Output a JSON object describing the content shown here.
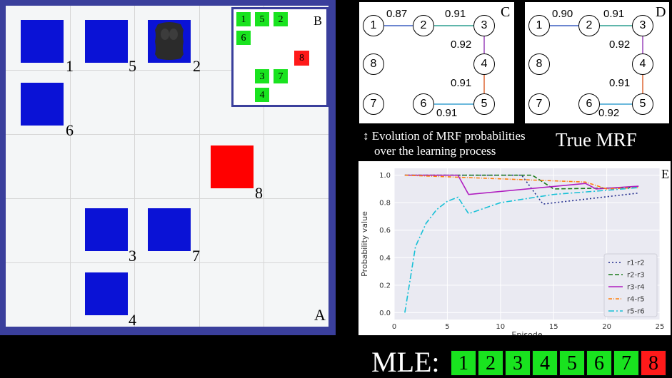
{
  "panelA": {
    "letter": "A",
    "labels": [
      "1",
      "5",
      "2",
      "6",
      "8",
      "3",
      "7",
      "4"
    ],
    "agent_icon": "robot-agent-icon",
    "colors": {
      "border": "#3a3f9c",
      "target": "#0a12d6",
      "wrong": "#ff0000"
    }
  },
  "panelB": {
    "letter": "B",
    "cells": [
      "1",
      "5",
      "2",
      "6",
      "8",
      "3",
      "7",
      "4"
    ]
  },
  "panelC": {
    "letter": "C",
    "nodes": [
      "1",
      "2",
      "3",
      "8",
      "4",
      "7",
      "6",
      "5"
    ],
    "edges": [
      "0.87",
      "0.91",
      "0.92",
      "0.91",
      "0.91"
    ]
  },
  "panelD": {
    "letter": "D",
    "nodes": [
      "1",
      "2",
      "3",
      "8",
      "4",
      "7",
      "6",
      "5"
    ],
    "edges": [
      "0.90",
      "0.91",
      "0.92",
      "0.91",
      "0.92"
    ]
  },
  "caption": {
    "line1": "↕ Evolution of MRF probabilities",
    "line2": "over the learning process",
    "true_mrf": "True MRF"
  },
  "chart_data": {
    "type": "line",
    "letter": "E",
    "xlabel": "Episode",
    "ylabel": "Probability value",
    "xlim": [
      0,
      25
    ],
    "ylim": [
      -0.05,
      1.05
    ],
    "xticks": [
      0,
      5,
      10,
      15,
      20,
      25
    ],
    "yticks": [
      0.0,
      0.2,
      0.4,
      0.6,
      0.8,
      1.0
    ],
    "grid": true,
    "legend": "bottom-right",
    "series": [
      {
        "name": "r1-r2",
        "color": "#1f2a8c",
        "dash": "2,3",
        "x": [
          1,
          12,
          14,
          23
        ],
        "y": [
          1.0,
          1.0,
          0.79,
          0.87
        ]
      },
      {
        "name": "r2-r3",
        "color": "#1a7a1a",
        "dash": "6,3",
        "x": [
          1,
          13,
          15,
          23
        ],
        "y": [
          1.0,
          1.0,
          0.9,
          0.91
        ]
      },
      {
        "name": "r3-r4",
        "color": "#b01ec0",
        "dash": "",
        "x": [
          1,
          6,
          7,
          18,
          19,
          23
        ],
        "y": [
          1.0,
          1.0,
          0.86,
          0.94,
          0.9,
          0.92
        ]
      },
      {
        "name": "r4-r5",
        "color": "#ff7f0e",
        "dash": "5,2,1,2",
        "x": [
          1,
          18,
          20,
          23
        ],
        "y": [
          1.0,
          0.95,
          0.9,
          0.91
        ]
      },
      {
        "name": "r5-r6",
        "color": "#17c0d6",
        "dash": "8,3,2,3",
        "x": [
          1,
          2,
          3,
          4,
          5,
          6,
          7,
          10,
          15,
          20,
          23
        ],
        "y": [
          0.0,
          0.48,
          0.65,
          0.75,
          0.81,
          0.84,
          0.72,
          0.8,
          0.86,
          0.89,
          0.91
        ]
      }
    ]
  },
  "mle": {
    "label": "MLE:",
    "values": [
      "1",
      "2",
      "3",
      "4",
      "5",
      "6",
      "7",
      "8"
    ],
    "colors": [
      "#19e31f",
      "#19e31f",
      "#19e31f",
      "#19e31f",
      "#19e31f",
      "#19e31f",
      "#19e31f",
      "#ff1a1a"
    ]
  }
}
